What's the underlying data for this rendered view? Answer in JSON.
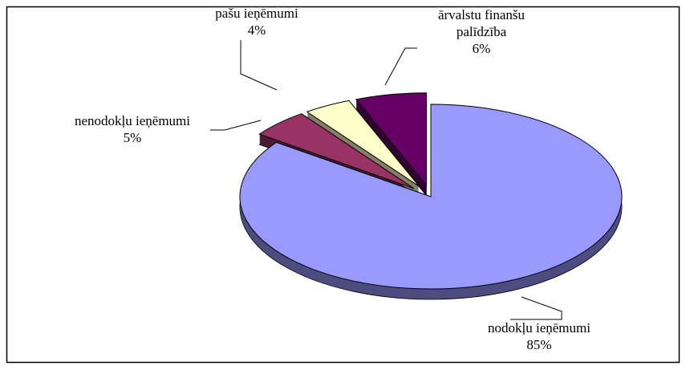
{
  "chart_data": {
    "type": "pie",
    "categories": [
      "nodokļu ieņēmumi",
      "nenodokļu ieņēmumi",
      "pašu ieņēmumi",
      "ārvalstu finanšu palīdzība"
    ],
    "values": [
      85,
      5,
      4,
      6
    ],
    "value_labels": [
      "85%",
      "5%",
      "4%",
      "6%"
    ],
    "colors": [
      "#9999ff",
      "#993366",
      "#ffffcc",
      "#660066"
    ]
  }
}
